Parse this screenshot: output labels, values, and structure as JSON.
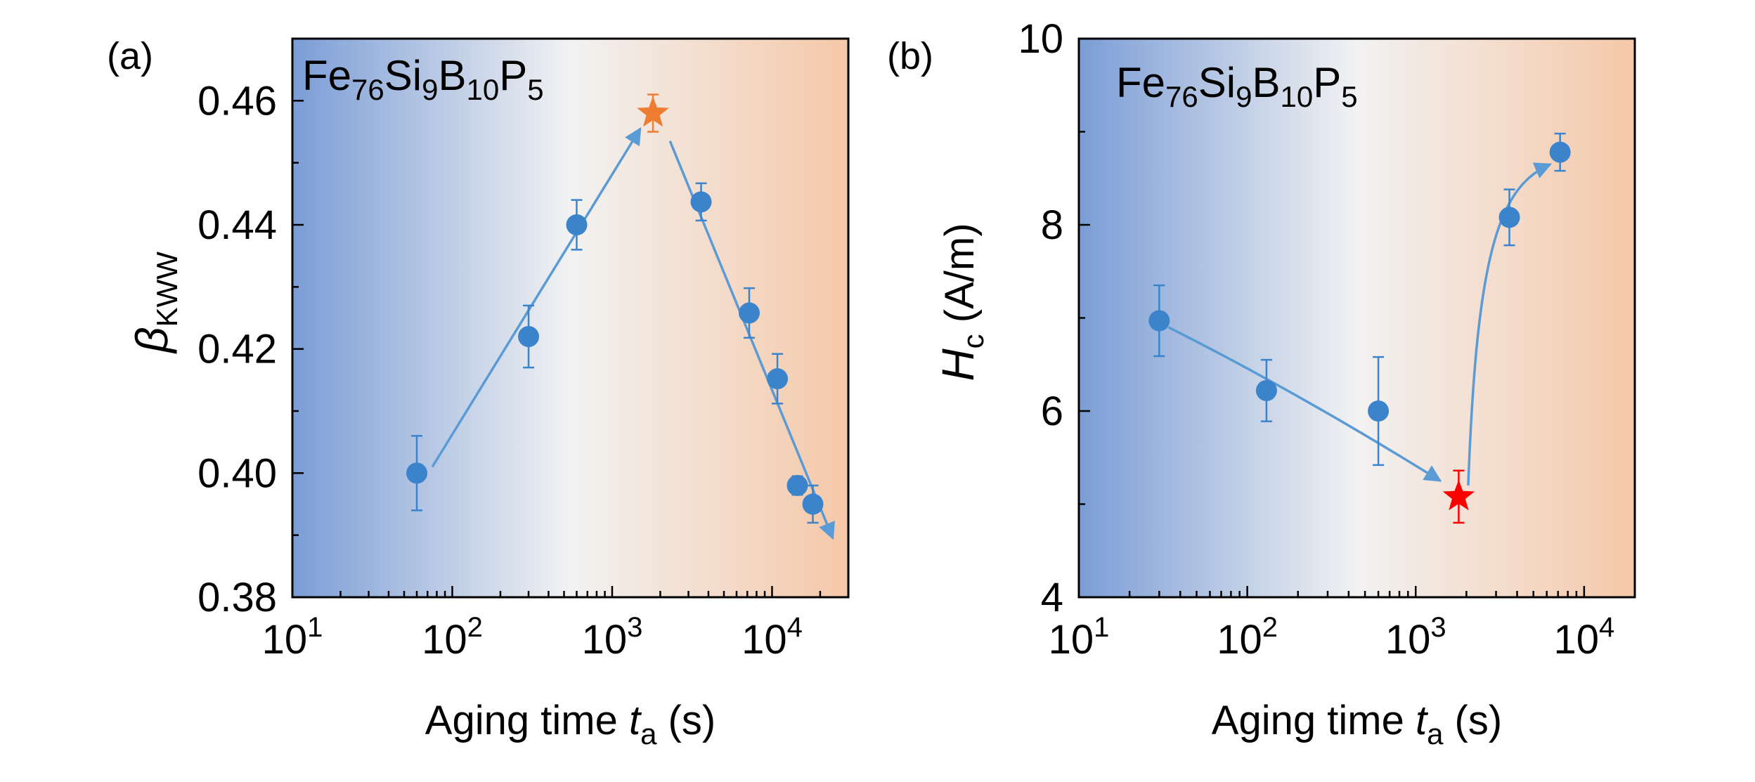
{
  "chart_data": [
    {
      "type": "scatter",
      "panel_label": "(a)",
      "formula": {
        "parts": [
          [
            "Fe",
            "76"
          ],
          [
            "Si",
            "9"
          ],
          [
            "B",
            "10"
          ],
          [
            "P",
            "5"
          ]
        ]
      },
      "xlabel": {
        "pre": "Aging time ",
        "var": "t",
        "sub": "a",
        "post": " (s)"
      },
      "ylabel": {
        "var": "β",
        "sub": "KWW"
      },
      "x_scale": "log",
      "xlim": [
        10,
        30000
      ],
      "ylim": [
        0.38,
        0.47
      ],
      "x_ticks": [
        {
          "value": 10,
          "base": "10",
          "exp": "1"
        },
        {
          "value": 100,
          "base": "10",
          "exp": "2"
        },
        {
          "value": 1000,
          "base": "10",
          "exp": "3"
        },
        {
          "value": 10000,
          "base": "10",
          "exp": "4"
        }
      ],
      "y_ticks": [
        {
          "value": 0.38,
          "label": "0.38"
        },
        {
          "value": 0.4,
          "label": "0.40"
        },
        {
          "value": 0.42,
          "label": "0.42"
        },
        {
          "value": 0.44,
          "label": "0.44"
        },
        {
          "value": 0.46,
          "label": "0.46"
        }
      ],
      "background_gradient": [
        "#7b9dd6",
        "#f2f2f2",
        "#f5c8a8"
      ],
      "point_color": "#3b84cc",
      "arrow_color": "#5b9bd5",
      "series": [
        {
          "x": [
            60,
            300,
            600,
            3600,
            7200,
            10800,
            14400,
            18000
          ],
          "y": [
            0.4,
            0.422,
            0.44,
            0.4437,
            0.4258,
            0.4152,
            0.398,
            0.395
          ],
          "err": [
            0.006,
            0.005,
            0.004,
            0.003,
            0.004,
            0.004,
            0.0015,
            0.003
          ]
        }
      ],
      "highlight": {
        "x": 1800,
        "y": 0.458,
        "err": 0.003,
        "marker": "star",
        "color": "#ee7d31"
      },
      "arrows": [
        {
          "from": [
            75,
            0.401
          ],
          "to": [
            1500,
            0.4555
          ]
        },
        {
          "from": [
            2300,
            0.4535
          ],
          "to": [
            24000,
            0.3895
          ]
        }
      ]
    },
    {
      "type": "scatter",
      "panel_label": "(b)",
      "formula": {
        "parts": [
          [
            "Fe",
            "76"
          ],
          [
            "Si",
            "9"
          ],
          [
            "B",
            "10"
          ],
          [
            "P",
            "5"
          ]
        ]
      },
      "xlabel": {
        "pre": "Aging time ",
        "var": "t",
        "sub": "a",
        "post": " (s)"
      },
      "ylabel": {
        "var": "H",
        "sub": "c",
        "post": " (A/m)"
      },
      "x_scale": "log",
      "xlim": [
        10,
        20000
      ],
      "ylim": [
        4,
        10
      ],
      "x_ticks": [
        {
          "value": 10,
          "base": "10",
          "exp": "1"
        },
        {
          "value": 100,
          "base": "10",
          "exp": "2"
        },
        {
          "value": 1000,
          "base": "10",
          "exp": "3"
        },
        {
          "value": 10000,
          "base": "10",
          "exp": "4"
        }
      ],
      "y_ticks": [
        {
          "value": 4,
          "label": "4"
        },
        {
          "value": 6,
          "label": "6"
        },
        {
          "value": 8,
          "label": "8"
        },
        {
          "value": 10,
          "label": "10"
        }
      ],
      "background_gradient": [
        "#7b9dd6",
        "#f2f2f2",
        "#f5c8a8"
      ],
      "point_color": "#3b84cc",
      "arrow_color": "#5b9bd5",
      "series": [
        {
          "x": [
            30,
            130,
            600,
            3600,
            7200
          ],
          "y": [
            6.97,
            6.22,
            6.0,
            8.08,
            8.78
          ],
          "err": [
            0.38,
            0.33,
            0.58,
            0.3,
            0.2
          ]
        }
      ],
      "highlight": {
        "x": 1800,
        "y": 5.08,
        "err": 0.28,
        "marker": "star",
        "color": "#ff0000"
      },
      "arrows": [
        {
          "path": [
            [
              34,
              6.9
            ],
            [
              200,
              6.2
            ],
            [
              1400,
              5.25
            ]
          ]
        },
        {
          "path": [
            [
              2050,
              5.2
            ],
            [
              2300,
              7.6
            ],
            [
              3000,
              8.4
            ],
            [
              6300,
              8.65
            ]
          ]
        }
      ]
    }
  ]
}
